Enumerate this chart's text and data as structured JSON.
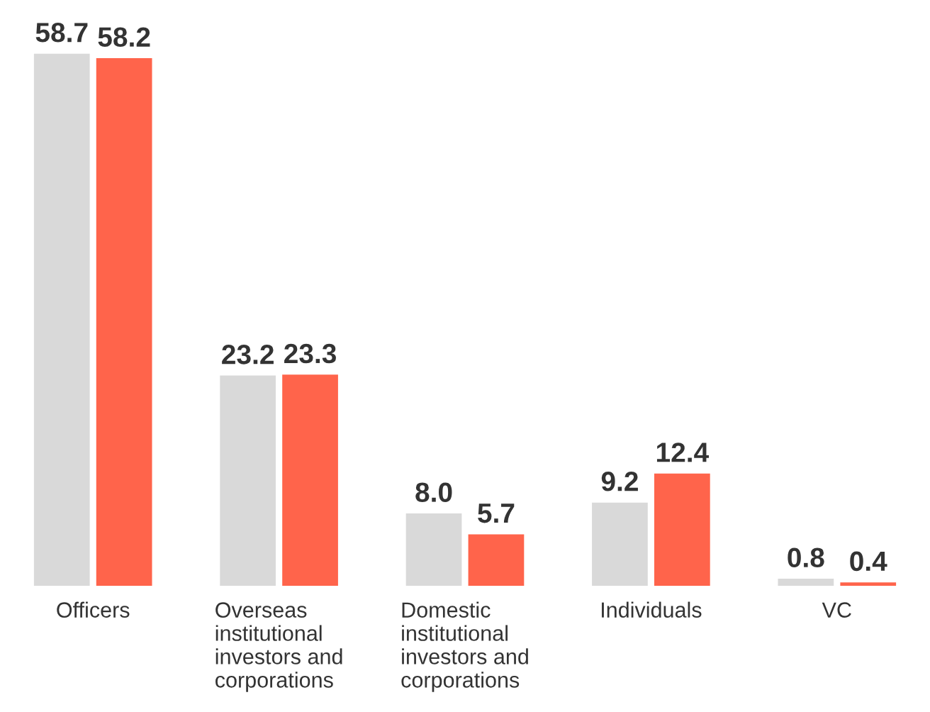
{
  "chart_data": {
    "type": "bar",
    "categories": [
      "Officers",
      "Overseas\ninstitutional\ninvestors and\ncorporations",
      "Domestic\ninstitutional\ninvestors and\ncorporations",
      "Individuals",
      "VC"
    ],
    "series": [
      {
        "color": "#d9d9d9",
        "values": [
          58.7,
          23.2,
          8.0,
          9.2,
          0.8
        ],
        "value_labels": [
          "58.7",
          "23.2",
          "8.0",
          "9.2",
          "0.8"
        ]
      },
      {
        "color": "#ff644b",
        "values": [
          58.2,
          23.3,
          5.7,
          12.4,
          0.4
        ],
        "value_labels": [
          "58.2",
          "23.3",
          "5.7",
          "12.4",
          "0.4"
        ]
      }
    ],
    "tick_labels": "x",
    "grid": false,
    "legend": false
  }
}
